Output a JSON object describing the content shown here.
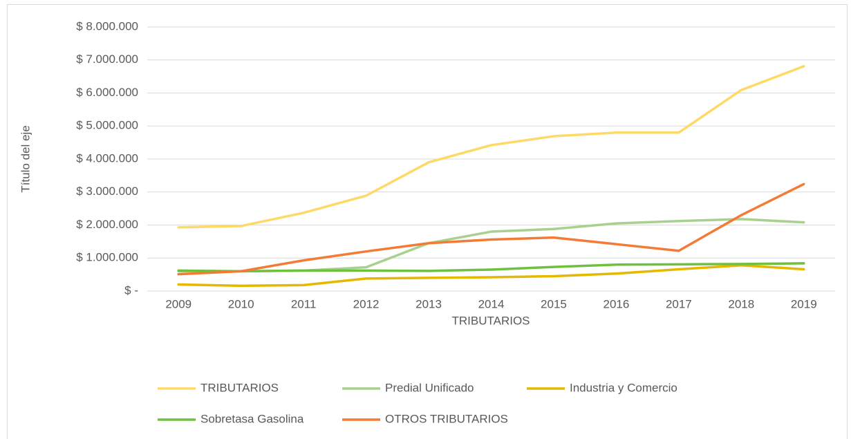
{
  "chart_data": {
    "type": "line",
    "x_label": "TRIBUTARIOS",
    "y_label": "Título del eje",
    "categories": [
      "2009",
      "2010",
      "2011",
      "2012",
      "2013",
      "2014",
      "2015",
      "2016",
      "2017",
      "2018",
      "2019"
    ],
    "series": [
      {
        "name": "TRIBUTARIOS",
        "color": "#ffd966",
        "values": [
          1930000,
          1970000,
          2370000,
          2890000,
          3900000,
          4420000,
          4690000,
          4800000,
          4800000,
          6090000,
          6810000
        ]
      },
      {
        "name": "Predial Unificado",
        "color": "#a9d18e",
        "values": [
          600000,
          600000,
          620000,
          720000,
          1450000,
          1800000,
          1880000,
          2050000,
          2120000,
          2180000,
          2080000
        ]
      },
      {
        "name": "Industria y Comercio",
        "color": "#e6b800",
        "values": [
          200000,
          160000,
          180000,
          380000,
          400000,
          420000,
          450000,
          530000,
          660000,
          780000,
          660000
        ]
      },
      {
        "name": "Sobretasa Gasolina",
        "color": "#70c040",
        "values": [
          620000,
          600000,
          620000,
          620000,
          610000,
          650000,
          730000,
          800000,
          810000,
          820000,
          840000
        ]
      },
      {
        "name": "OTROS TRIBUTARIOS",
        "color": "#f47b35",
        "values": [
          510000,
          600000,
          930000,
          1200000,
          1450000,
          1560000,
          1620000,
          1420000,
          1220000,
          2300000,
          3240000
        ]
      }
    ],
    "ylim": [
      0,
      8000000
    ],
    "yticks": [
      {
        "value": 0,
        "label": "$ -"
      },
      {
        "value": 1000000,
        "label": "$ 1.000.000"
      },
      {
        "value": 2000000,
        "label": "$ 2.000.000"
      },
      {
        "value": 3000000,
        "label": "$ 3.000.000"
      },
      {
        "value": 4000000,
        "label": "$ 4.000.000"
      },
      {
        "value": 5000000,
        "label": "$ 5.000.000"
      },
      {
        "value": 6000000,
        "label": "$ 6.000.000"
      },
      {
        "value": 7000000,
        "label": "$ 7.000.000"
      },
      {
        "value": 8000000,
        "label": "$ 8.000.000"
      }
    ],
    "grid": true,
    "legend": "bottom"
  }
}
